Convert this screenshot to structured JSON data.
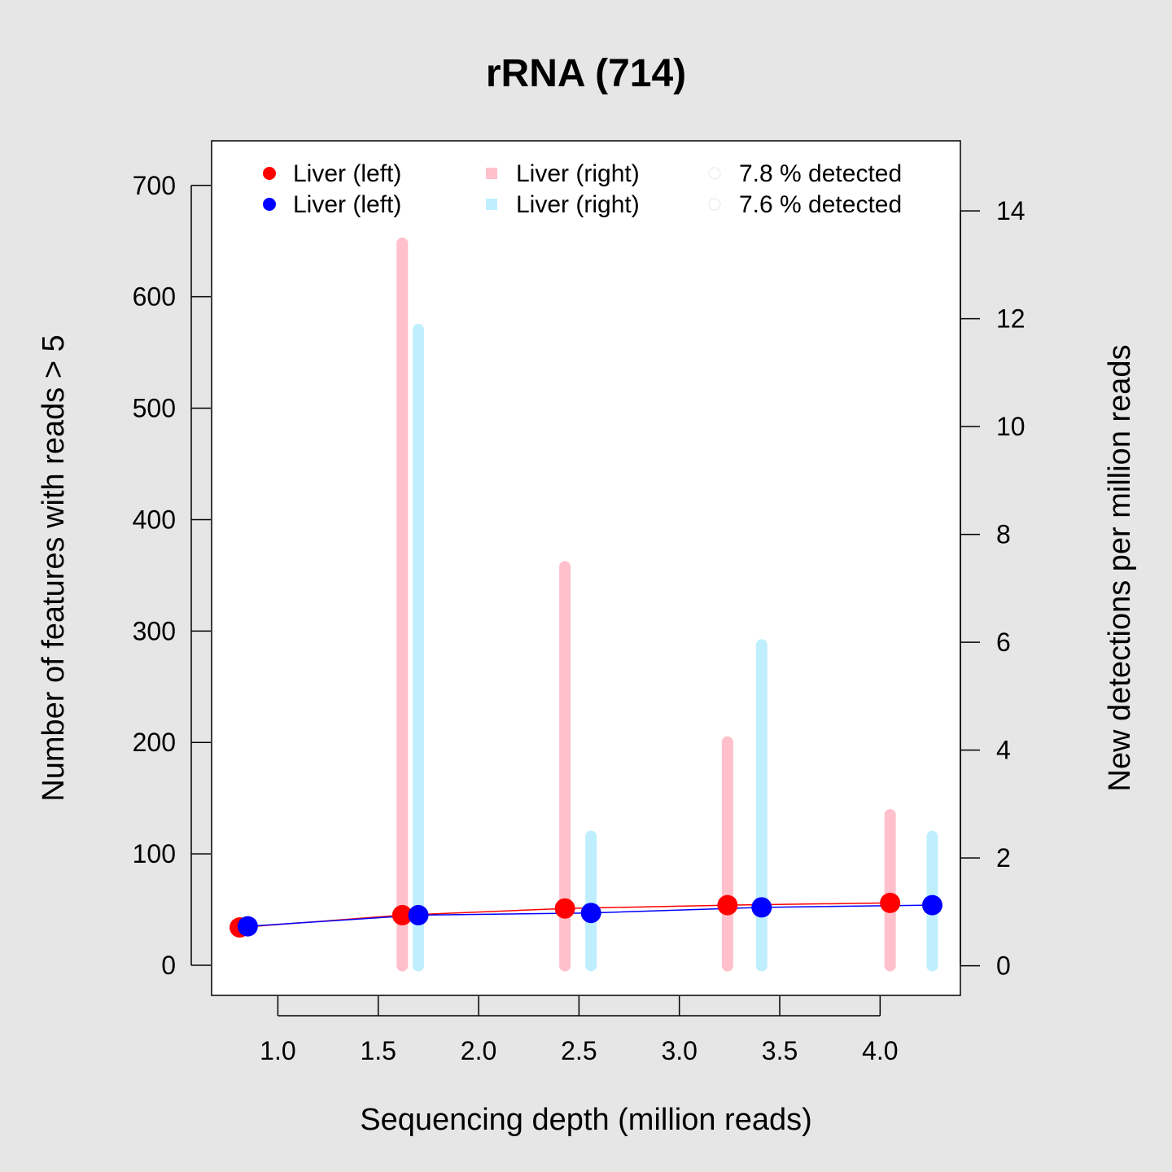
{
  "chart_data": {
    "type": "line",
    "title": "rRNA (714)",
    "xlabel": "Sequencing depth (million reads)",
    "ylabel": "Number of features with reads > 5",
    "y2label": "New detections per million reads",
    "xlim": [
      0.67,
      4.4
    ],
    "ylim": [
      -27,
      740
    ],
    "y2lim": [
      -0.55,
      15.3
    ],
    "x_ticks": [
      1.0,
      1.5,
      2.0,
      2.5,
      3.0,
      3.5,
      4.0
    ],
    "x_tick_labels": [
      "1.0",
      "1.5",
      "2.0",
      "2.5",
      "3.0",
      "3.5",
      "4.0"
    ],
    "y_ticks": [
      0,
      100,
      200,
      300,
      400,
      500,
      600,
      700
    ],
    "y_tick_labels": [
      "0",
      "100",
      "200",
      "300",
      "400",
      "500",
      "600",
      "700"
    ],
    "y2_ticks": [
      0,
      2,
      4,
      6,
      8,
      10,
      12,
      14
    ],
    "y2_tick_labels": [
      "0",
      "2",
      "4",
      "6",
      "8",
      "10",
      "12",
      "14"
    ],
    "grid": false,
    "legend_position": "top",
    "legend": [
      [
        "Liver (left)",
        "Liver (right)",
        "7.8 % detected"
      ],
      [
        "Liver (left)",
        "Liver (right)",
        "7.6 % detected"
      ]
    ],
    "series": [
      {
        "name": "Liver (left)",
        "kind": "line+points",
        "axis": "left",
        "color": "#ff0000",
        "x": [
          0.81,
          1.62,
          2.43,
          3.24,
          4.05
        ],
        "y": [
          34,
          45,
          51,
          54,
          56
        ]
      },
      {
        "name": "Liver (left)",
        "kind": "line+points",
        "axis": "left",
        "color": "#0000ff",
        "x": [
          0.85,
          1.7,
          2.56,
          3.41,
          4.26
        ],
        "y": [
          35,
          45,
          47,
          52,
          54
        ]
      },
      {
        "name": "Liver (right)",
        "kind": "bars",
        "axis": "right",
        "color": "#ffc0cb",
        "x": [
          1.62,
          2.43,
          3.24,
          4.05
        ],
        "y": [
          13.4,
          7.4,
          4.15,
          2.8
        ]
      },
      {
        "name": "Liver (right)",
        "kind": "bars",
        "axis": "right",
        "color": "#bfefff",
        "x": [
          1.7,
          2.56,
          3.41,
          4.26
        ],
        "y": [
          11.8,
          2.4,
          5.95,
          2.4
        ]
      }
    ]
  }
}
